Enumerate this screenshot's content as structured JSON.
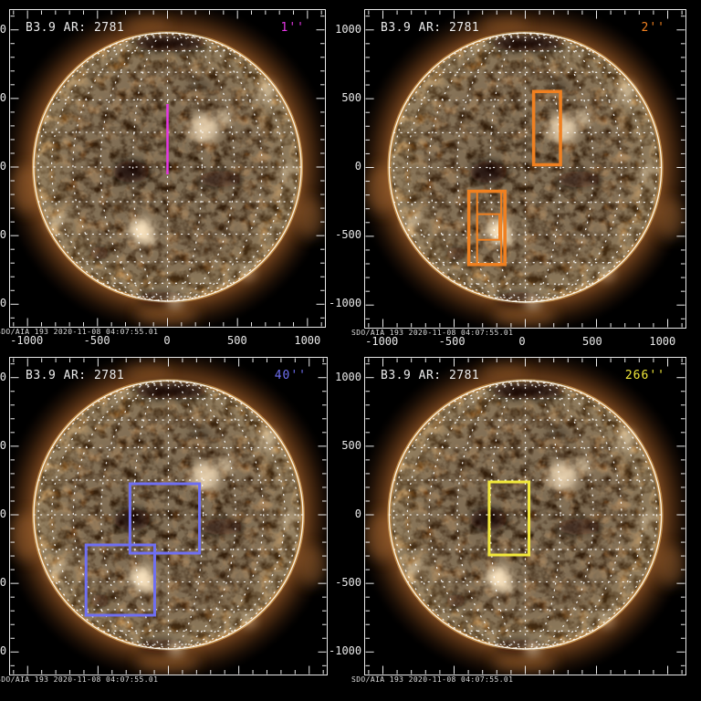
{
  "panels": [
    {
      "title": "B3.9 AR: 2781",
      "fov_label": "1''",
      "fov_color": "#e636e6"
    },
    {
      "title": "B3.9 AR: 2781",
      "fov_label": "2''",
      "fov_color": "#f08020"
    },
    {
      "title": "B3.9 AR: 2781",
      "fov_label": "40''",
      "fov_color": "#6f6ff2"
    },
    {
      "title": "B3.9 AR: 2781",
      "fov_label": "266''",
      "fov_color": "#f2e93a"
    }
  ],
  "axes": {
    "x_tick_labels": [
      "-1000",
      "-500",
      "0",
      "500",
      "1000"
    ],
    "y_tick_labels": [
      "1000",
      "500",
      "0",
      "-500",
      "-1000"
    ]
  },
  "timestamp_label": "SDO/AIA 193  2020-11-08 04:07:55.01",
  "colors": {
    "background": "#000000",
    "axis": "#e9e9e9",
    "grid_dots": "#ffffff",
    "limb": "#fdf8ea",
    "slit_1arcsec": "#e636e6",
    "raster_2arcsec": "#f08020",
    "raster_40arcsec": "#6f6ff2",
    "raster_266arcsec": "#f2e93a"
  },
  "chart_data": {
    "type": "heatmap",
    "description": "2x2 grid of SDO/AIA 193 full-disk solar EUV images with spectrograph slit/raster field-of-view overlays of increasing width",
    "title": "",
    "xlabel": "",
    "ylabel": "",
    "x_range_arcsec": [
      -1150,
      1150
    ],
    "y_range_arcsec": [
      -1150,
      1150
    ],
    "x_ticks": [
      -1000,
      -500,
      0,
      500,
      1000
    ],
    "y_ticks": [
      1000,
      500,
      0,
      -500,
      -1000
    ],
    "solar_limb_radius_arcsec": 960,
    "grid": "heliographic dotted grid, 15 degree spacing",
    "panels": [
      {
        "fov_label": "1''",
        "annotation": "B3.9 AR: 2781",
        "overlay_color": "magenta",
        "overlay": [
          {
            "shape": "vertical-line",
            "x_arcsec": 0,
            "y_arcsec": [
              -45,
              460
            ]
          }
        ]
      },
      {
        "fov_label": "2''",
        "annotation": "B3.9 AR: 2781",
        "overlay_color": "orange",
        "overlay": [
          {
            "shape": "rect",
            "x_arcsec": [
              65,
              255
            ],
            "y_arcsec": [
              5,
              540
            ]
          },
          {
            "shape": "rect",
            "x_arcsec": [
              -400,
              -145
            ],
            "y_arcsec": [
              -730,
              -195
            ]
          },
          {
            "shape": "rect",
            "x_arcsec": [
              -340,
              -170
            ],
            "y_arcsec": [
              -730,
              -195
            ]
          },
          {
            "shape": "rect",
            "x_arcsec": [
              -340,
              -185
            ],
            "y_arcsec": [
              -545,
              -360
            ]
          }
        ]
      },
      {
        "fov_label": "40''",
        "annotation": "B3.9 AR: 2781",
        "overlay_color": "blue",
        "overlay": [
          {
            "shape": "rect",
            "x_arcsec": [
              -270,
              225
            ],
            "y_arcsec": [
              -285,
              220
            ]
          },
          {
            "shape": "rect",
            "x_arcsec": [
              -580,
              -95
            ],
            "y_arcsec": [
              -740,
              -225
            ]
          }
        ]
      },
      {
        "fov_label": "266''",
        "annotation": "B3.9 AR: 2781",
        "overlay_color": "yellow",
        "overlay": [
          {
            "shape": "rect",
            "x_arcsec": [
              -260,
              20
            ],
            "y_arcsec": [
              -305,
              225
            ]
          }
        ]
      }
    ]
  }
}
